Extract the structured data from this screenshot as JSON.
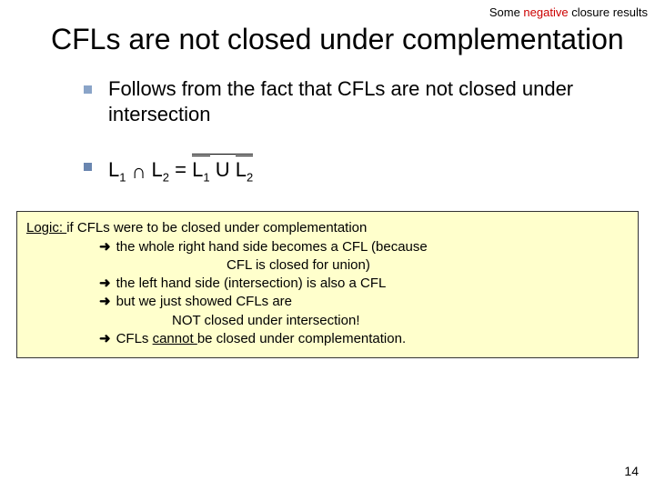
{
  "header": {
    "pre": "Some ",
    "neg": "negative",
    "post": " closure results"
  },
  "title": "CFLs are not closed under complementation",
  "bullets": {
    "b1": "Follows from the fact that CFLs are not closed under intersection",
    "eq": {
      "l1": "L",
      "s1": "1",
      "inter": "∩",
      "l2": "L",
      "s2": "2",
      "eqsym": " = ",
      "l3": "L",
      "s3": "1",
      "union": " U ",
      "l4": "L",
      "s4": "2"
    }
  },
  "logic": {
    "intro_u": "Logic: ",
    "intro": "if CFLs were to be closed under complementation",
    "arrow": "→",
    "a1": "the whole right hand side becomes a CFL (because",
    "a1b": "CFL is closed for union)",
    "a2": "the left hand side (intersection) is also a CFL",
    "a3": "but we just showed CFLs are",
    "a3b": "NOT closed under intersection!",
    "a4a": "CFLs ",
    "a4u": "cannot ",
    "a4b": "be closed under complementation."
  },
  "pagenum": "14",
  "colors": {
    "neg": "#cc0000",
    "logic_bg": "#ffffcc",
    "bullet1": "#8aa4c8",
    "bullet2": "#6a86b0"
  }
}
